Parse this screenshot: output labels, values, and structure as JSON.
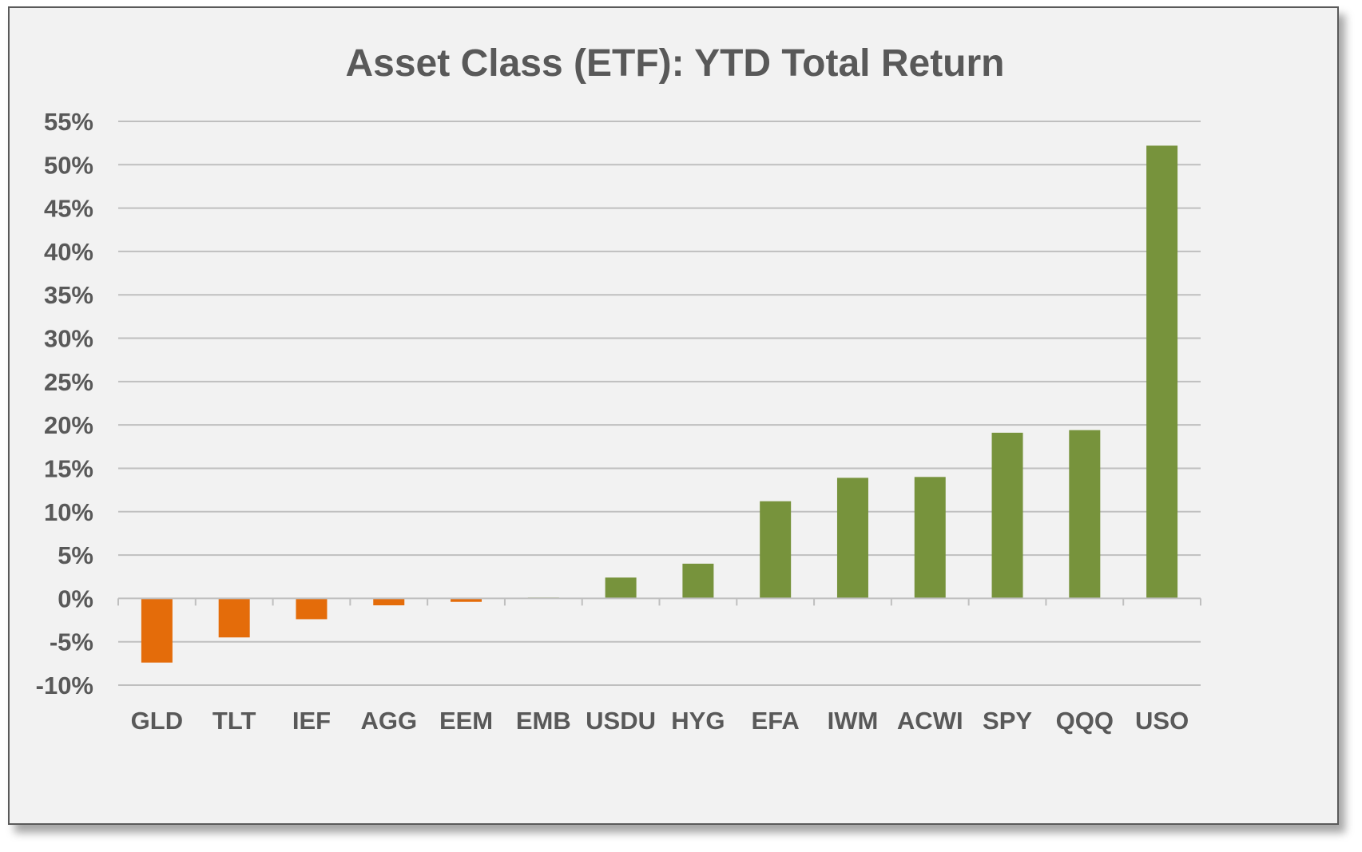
{
  "chart_data": {
    "type": "bar",
    "title": "Asset Class (ETF): YTD Total Return",
    "xlabel": "",
    "ylabel": "",
    "categories": [
      "GLD",
      "TLT",
      "IEF",
      "AGG",
      "EEM",
      "EMB",
      "USDU",
      "HYG",
      "EFA",
      "IWM",
      "ACWI",
      "SPY",
      "QQQ",
      "USO"
    ],
    "values": [
      -7.4,
      -4.5,
      -2.4,
      -0.8,
      -0.4,
      0.1,
      2.4,
      4.0,
      11.2,
      13.9,
      14.0,
      19.1,
      19.4,
      52.2
    ],
    "ylim": [
      -10,
      55
    ],
    "yticks": [
      55,
      50,
      45,
      40,
      35,
      30,
      25,
      20,
      15,
      10,
      5,
      0,
      -5,
      -10
    ],
    "ytick_labels": [
      "55%",
      "50%",
      "45%",
      "40%",
      "35%",
      "30%",
      "25%",
      "20%",
      "15%",
      "10%",
      "5%",
      "0%",
      "-5%",
      "-10%"
    ],
    "grid": true,
    "legend": "none",
    "colors": {
      "positive": "#77933c",
      "negative": "#e46c0a",
      "grid": "#bfbfbf",
      "text": "#595959"
    }
  }
}
